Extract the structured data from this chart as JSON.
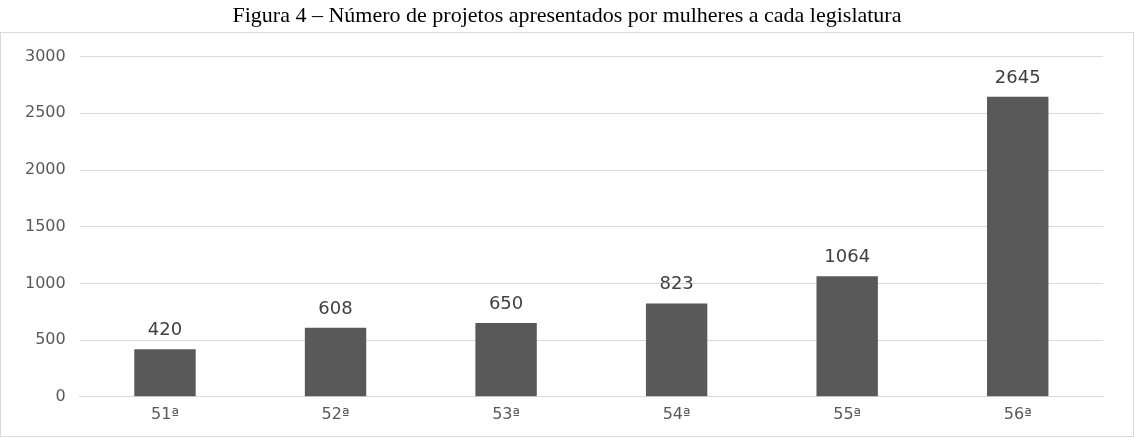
{
  "chart_data": {
    "type": "bar",
    "title": "Figura 4 – Número de projetos apresentados por mulheres a cada legislatura",
    "categories": [
      "51ª",
      "52ª",
      "53ª",
      "54ª",
      "55ª",
      "56ª"
    ],
    "values": [
      420,
      608,
      650,
      823,
      1064,
      2645
    ],
    "color": "#595959",
    "ylim": [
      0,
      3000
    ],
    "yticks": [
      0,
      500,
      1000,
      1500,
      2000,
      2500,
      3000
    ],
    "grid": "y",
    "data_labels": true
  }
}
